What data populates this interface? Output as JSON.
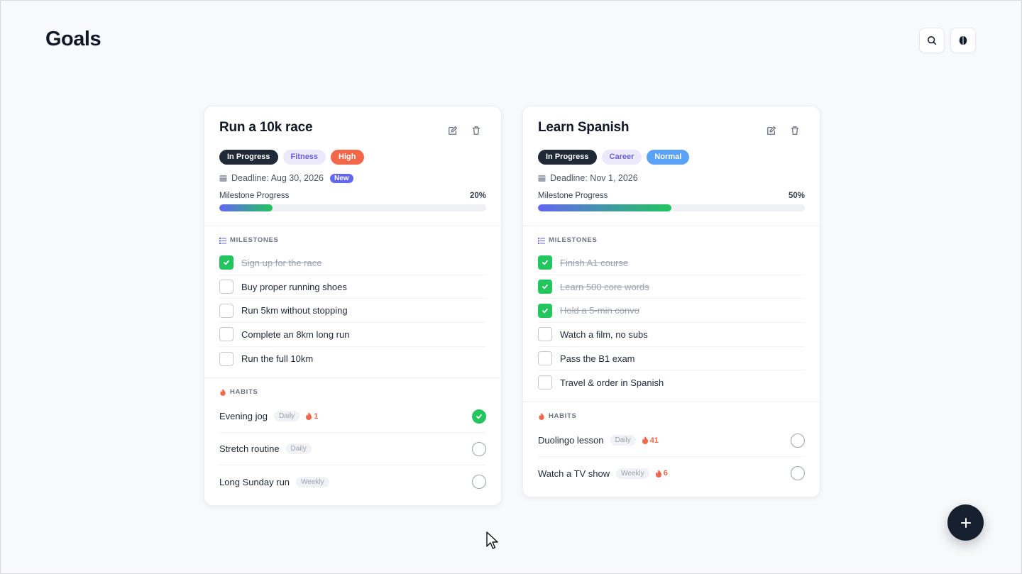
{
  "header": {
    "title": "Goals"
  },
  "goals": [
    {
      "title": "Run a 10k race",
      "status": "In Progress",
      "category": "Fitness",
      "priority": "High",
      "deadline": "Deadline: Aug 30, 2026",
      "badge": "New",
      "progress_label": "Milestone Progress",
      "progress_text": "20%",
      "progress_value": 0.2,
      "milestones_label": "MILESTONES",
      "milestones": [
        {
          "text": "Sign up for the race",
          "done": true
        },
        {
          "text": "Buy proper running shoes",
          "done": false
        },
        {
          "text": "Run 5km without stopping",
          "done": false
        },
        {
          "text": "Complete an 8km long run",
          "done": false
        },
        {
          "text": "Run the full 10km",
          "done": false
        }
      ],
      "habits_label": "HABITS",
      "habits": [
        {
          "name": "Evening jog",
          "freq": "Daily",
          "streak": "1",
          "done": true
        },
        {
          "name": "Stretch routine",
          "freq": "Daily",
          "streak": "",
          "done": false
        },
        {
          "name": "Long Sunday run",
          "freq": "Weekly",
          "streak": "",
          "done": false
        }
      ]
    },
    {
      "title": "Learn Spanish",
      "status": "In Progress",
      "category": "Career",
      "priority": "Normal",
      "deadline": "Deadline: Nov 1, 2026",
      "badge": "",
      "progress_label": "Milestone Progress",
      "progress_text": "50%",
      "progress_value": 0.5,
      "milestones_label": "MILESTONES",
      "milestones": [
        {
          "text": "Finish A1 course",
          "done": true
        },
        {
          "text": "Learn 500 core words",
          "done": true
        },
        {
          "text": "Hold a 5-min convo",
          "done": true
        },
        {
          "text": "Watch a film, no subs",
          "done": false
        },
        {
          "text": "Pass the B1 exam",
          "done": false
        },
        {
          "text": "Travel & order in Spanish",
          "done": false
        }
      ],
      "habits_label": "HABITS",
      "habits": [
        {
          "name": "Duolingo lesson",
          "freq": "Daily",
          "streak": "41",
          "done": false
        },
        {
          "name": "Watch a TV show",
          "freq": "Weekly",
          "streak": "6",
          "done": false
        }
      ]
    }
  ],
  "colors": {
    "accent": "#6366f1",
    "success": "#22c55e",
    "high": "#f2674a",
    "normal": "#5aa2f5",
    "dark": "#1f2937"
  },
  "icons": {
    "search": "search-icon",
    "theme": "theme-icon",
    "edit": "edit-icon",
    "delete": "trash-icon",
    "add": "plus-icon"
  }
}
